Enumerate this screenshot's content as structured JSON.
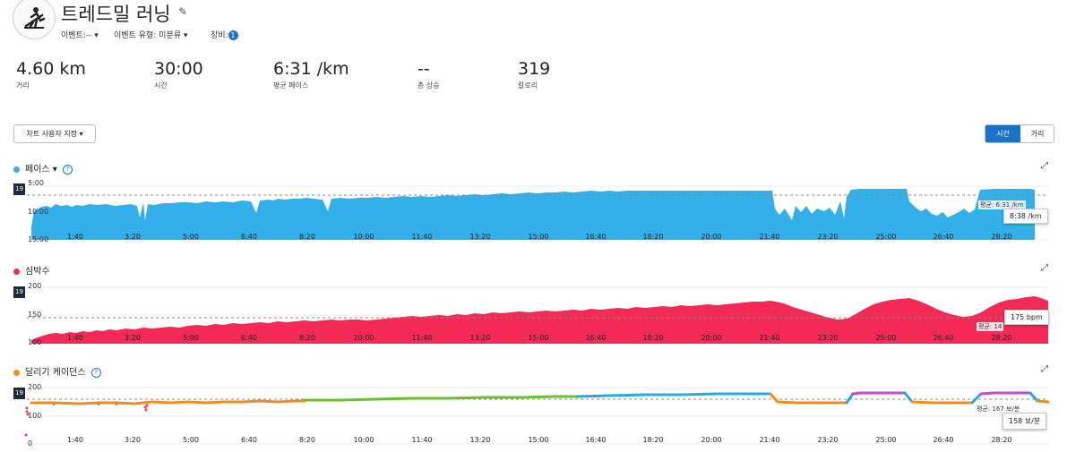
{
  "header": {
    "title": "트레드밀 러닝",
    "event_label": "이벤트:",
    "event_value": "--",
    "event_type_label": "이벤트 유형:",
    "event_type_value": "미분류",
    "gear_label": "장비:",
    "gear_count": "1"
  },
  "stats": [
    {
      "value": "4.60 km",
      "label": "거리"
    },
    {
      "value": "30:00",
      "label": "시간"
    },
    {
      "value": "6:31 /km",
      "label": "평균 페이스"
    },
    {
      "value": "--",
      "label": "총 상승"
    },
    {
      "value": "319",
      "label": "칼로리"
    }
  ],
  "toolbar": {
    "customize_label": "차트 사용자 지정",
    "toggle_time": "시간",
    "toggle_distance": "거리"
  },
  "side_tag": "19",
  "x_ticks": [
    "1:40",
    "3:20",
    "5:00",
    "6:40",
    "8:20",
    "10:00",
    "11:40",
    "13:20",
    "15:00",
    "16:40",
    "18:20",
    "20:00",
    "21:40",
    "23:20",
    "25:00",
    "26:40",
    "28:20"
  ],
  "pace": {
    "title": "페이스",
    "color": "#33b0ea",
    "y_top": "5:00",
    "y_mid": "10:00",
    "y_bottom": "15:00",
    "avg_label": "평균: 6:31 /km",
    "tooltip": "8:38 /km"
  },
  "heart_rate": {
    "title": "심박수",
    "color": "#f22a55",
    "y_top": "200",
    "y_mid": "150",
    "y_bottom": "100",
    "avg_label": "평균: 14",
    "tooltip": "175 bpm"
  },
  "cadence": {
    "title": "달리기 케이던스",
    "dot_color": "#f39410",
    "y_top": "200",
    "y_mid": "100",
    "y_bottom": "0",
    "avg_label": "평균: 167 보/분",
    "tooltip": "158 보/분",
    "zone_colors": [
      "#ff3c3c",
      "#f08c1e",
      "#6cbf2e",
      "#29a8e0",
      "#c34bc7"
    ]
  }
}
